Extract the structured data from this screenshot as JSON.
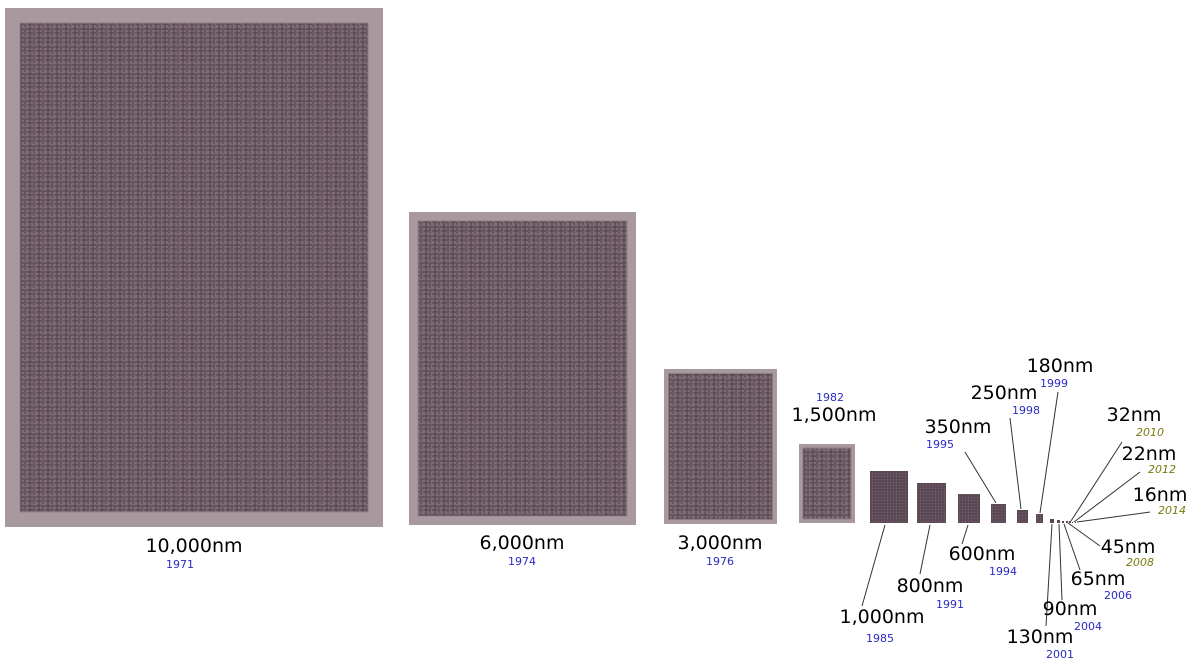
{
  "nodes": [
    {
      "label": "10,000nm",
      "year": "1971"
    },
    {
      "label": "6,000nm",
      "year": "1974"
    },
    {
      "label": "3,000nm",
      "year": "1976"
    },
    {
      "label": "1,500nm",
      "year": "1982"
    },
    {
      "label": "1,000nm",
      "year": "1985"
    },
    {
      "label": "800nm",
      "year": "1991"
    },
    {
      "label": "600nm",
      "year": "1994"
    },
    {
      "label": "350nm",
      "year": "1995"
    },
    {
      "label": "250nm",
      "year": "1998"
    },
    {
      "label": "180nm",
      "year": "1999"
    },
    {
      "label": "130nm",
      "year": "2001"
    },
    {
      "label": "90nm",
      "year": "2004"
    },
    {
      "label": "65nm",
      "year": "2006"
    },
    {
      "label": "45nm",
      "year": "2008"
    },
    {
      "label": "32nm",
      "year": "2010"
    },
    {
      "label": "22nm",
      "year": "2012"
    },
    {
      "label": "16nm",
      "year": "2014"
    }
  ]
}
